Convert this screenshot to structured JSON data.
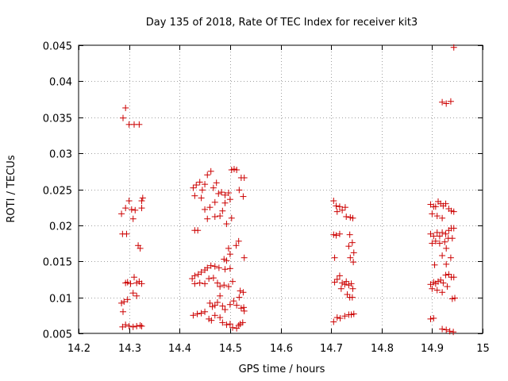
{
  "chart_data": {
    "type": "scatter",
    "title": "Day 135 of 2018, Rate Of TEC Index for receiver kit3",
    "xlabel": "GPS time / hours",
    "ylabel": "ROTI / TECUs",
    "xlim": [
      14.2,
      15.0
    ],
    "ylim": [
      0.005,
      0.045
    ],
    "xticks": [
      14.2,
      14.3,
      14.4,
      14.5,
      14.6,
      14.7,
      14.8,
      14.9,
      15.0
    ],
    "xtick_labels": [
      "14.2",
      "14.3",
      "14.4",
      "14.5",
      "14.6",
      "14.7",
      "14.8",
      "14.9",
      "15"
    ],
    "yticks": [
      0.005,
      0.01,
      0.015,
      0.02,
      0.025,
      0.03,
      0.035,
      0.04,
      0.045
    ],
    "ytick_labels": [
      "0.005",
      "0.01",
      "0.015",
      "0.02",
      "0.025",
      "0.03",
      "0.035",
      "0.04",
      "0.045"
    ],
    "grid": true,
    "marker": "+",
    "marker_color": "#cc0000",
    "series": [
      {
        "name": "ROTI",
        "points": [
          [
            14.288,
            0.0349
          ],
          [
            14.293,
            0.0363
          ],
          [
            14.3,
            0.034
          ],
          [
            14.31,
            0.034
          ],
          [
            14.32,
            0.034
          ],
          [
            14.285,
            0.0216
          ],
          [
            14.293,
            0.0224
          ],
          [
            14.3,
            0.0234
          ],
          [
            14.305,
            0.0222
          ],
          [
            14.312,
            0.0221
          ],
          [
            14.308,
            0.0209
          ],
          [
            14.325,
            0.0234
          ],
          [
            14.327,
            0.0238
          ],
          [
            14.325,
            0.0224
          ],
          [
            14.287,
            0.0188
          ],
          [
            14.295,
            0.0188
          ],
          [
            14.318,
            0.0172
          ],
          [
            14.322,
            0.0168
          ],
          [
            14.293,
            0.012
          ],
          [
            14.297,
            0.0121
          ],
          [
            14.303,
            0.0119
          ],
          [
            14.31,
            0.0128
          ],
          [
            14.315,
            0.012
          ],
          [
            14.32,
            0.0122
          ],
          [
            14.325,
            0.0119
          ],
          [
            14.308,
            0.0106
          ],
          [
            14.315,
            0.0102
          ],
          [
            14.285,
            0.0092
          ],
          [
            14.29,
            0.0094
          ],
          [
            14.297,
            0.0097
          ],
          [
            14.288,
            0.008
          ],
          [
            14.287,
            0.0059
          ],
          [
            14.293,
            0.0062
          ],
          [
            14.3,
            0.006
          ],
          [
            14.308,
            0.0059
          ],
          [
            14.315,
            0.006
          ],
          [
            14.322,
            0.0061
          ],
          [
            14.325,
            0.006
          ],
          [
            14.427,
            0.0252
          ],
          [
            14.433,
            0.0256
          ],
          [
            14.44,
            0.026
          ],
          [
            14.445,
            0.0249
          ],
          [
            14.45,
            0.0257
          ],
          [
            14.455,
            0.027
          ],
          [
            14.462,
            0.0275
          ],
          [
            14.467,
            0.0252
          ],
          [
            14.473,
            0.0259
          ],
          [
            14.477,
            0.0244
          ],
          [
            14.483,
            0.0246
          ],
          [
            14.49,
            0.0242
          ],
          [
            14.497,
            0.0245
          ],
          [
            14.503,
            0.0277
          ],
          [
            14.508,
            0.0278
          ],
          [
            14.513,
            0.0277
          ],
          [
            14.518,
            0.0249
          ],
          [
            14.522,
            0.0266
          ],
          [
            14.528,
            0.0266
          ],
          [
            14.526,
            0.024
          ],
          [
            14.43,
            0.0241
          ],
          [
            14.443,
            0.0238
          ],
          [
            14.45,
            0.0222
          ],
          [
            14.46,
            0.0225
          ],
          [
            14.47,
            0.0232
          ],
          [
            14.49,
            0.0231
          ],
          [
            14.5,
            0.0236
          ],
          [
            14.485,
            0.022
          ],
          [
            14.455,
            0.0209
          ],
          [
            14.47,
            0.0212
          ],
          [
            14.48,
            0.0213
          ],
          [
            14.493,
            0.0202
          ],
          [
            14.503,
            0.021
          ],
          [
            14.43,
            0.0193
          ],
          [
            14.436,
            0.0193
          ],
          [
            14.517,
            0.0178
          ],
          [
            14.512,
            0.0172
          ],
          [
            14.497,
            0.0168
          ],
          [
            14.5,
            0.016
          ],
          [
            14.488,
            0.0153
          ],
          [
            14.493,
            0.0151
          ],
          [
            14.528,
            0.0155
          ],
          [
            14.425,
            0.0126
          ],
          [
            14.43,
            0.013
          ],
          [
            14.437,
            0.0132
          ],
          [
            14.443,
            0.0135
          ],
          [
            14.45,
            0.0138
          ],
          [
            14.455,
            0.0141
          ],
          [
            14.462,
            0.0144
          ],
          [
            14.47,
            0.0143
          ],
          [
            14.478,
            0.0141
          ],
          [
            14.49,
            0.0139
          ],
          [
            14.5,
            0.014
          ],
          [
            14.43,
            0.0119
          ],
          [
            14.44,
            0.012
          ],
          [
            14.45,
            0.0119
          ],
          [
            14.458,
            0.0126
          ],
          [
            14.467,
            0.0127
          ],
          [
            14.475,
            0.012
          ],
          [
            14.48,
            0.0115
          ],
          [
            14.488,
            0.0117
          ],
          [
            14.497,
            0.0115
          ],
          [
            14.505,
            0.0122
          ],
          [
            14.52,
            0.0109
          ],
          [
            14.526,
            0.0107
          ],
          [
            14.46,
            0.0092
          ],
          [
            14.465,
            0.0087
          ],
          [
            14.47,
            0.0089
          ],
          [
            14.475,
            0.0093
          ],
          [
            14.48,
            0.0102
          ],
          [
            14.485,
            0.0088
          ],
          [
            14.49,
            0.0083
          ],
          [
            14.5,
            0.009
          ],
          [
            14.507,
            0.0095
          ],
          [
            14.513,
            0.0089
          ],
          [
            14.518,
            0.01
          ],
          [
            14.522,
            0.0085
          ],
          [
            14.527,
            0.0086
          ],
          [
            14.528,
            0.0081
          ],
          [
            14.427,
            0.0075
          ],
          [
            14.435,
            0.0077
          ],
          [
            14.443,
            0.0078
          ],
          [
            14.45,
            0.008
          ],
          [
            14.458,
            0.007
          ],
          [
            14.463,
            0.0068
          ],
          [
            14.47,
            0.0075
          ],
          [
            14.48,
            0.0072
          ],
          [
            14.485,
            0.0065
          ],
          [
            14.493,
            0.0062
          ],
          [
            14.5,
            0.0063
          ],
          [
            14.505,
            0.0058
          ],
          [
            14.513,
            0.0057
          ],
          [
            14.52,
            0.0063
          ],
          [
            14.525,
            0.0065
          ],
          [
            14.517,
            0.0061
          ],
          [
            14.705,
            0.0234
          ],
          [
            14.71,
            0.0227
          ],
          [
            14.717,
            0.0226
          ],
          [
            14.722,
            0.0221
          ],
          [
            14.728,
            0.0225
          ],
          [
            14.73,
            0.0212
          ],
          [
            14.738,
            0.0211
          ],
          [
            14.743,
            0.021
          ],
          [
            14.712,
            0.0219
          ],
          [
            14.705,
            0.0187
          ],
          [
            14.71,
            0.0186
          ],
          [
            14.717,
            0.0188
          ],
          [
            14.737,
            0.0187
          ],
          [
            14.742,
            0.0176
          ],
          [
            14.735,
            0.0171
          ],
          [
            14.745,
            0.0162
          ],
          [
            14.738,
            0.0155
          ],
          [
            14.744,
            0.0149
          ],
          [
            14.707,
            0.0155
          ],
          [
            14.707,
            0.0121
          ],
          [
            14.712,
            0.0125
          ],
          [
            14.717,
            0.013
          ],
          [
            14.722,
            0.012
          ],
          [
            14.727,
            0.0118
          ],
          [
            14.73,
            0.0122
          ],
          [
            14.735,
            0.0117
          ],
          [
            14.74,
            0.0119
          ],
          [
            14.743,
            0.0112
          ],
          [
            14.72,
            0.0112
          ],
          [
            14.737,
            0.01
          ],
          [
            14.742,
            0.01
          ],
          [
            14.732,
            0.0104
          ],
          [
            14.705,
            0.0066
          ],
          [
            14.712,
            0.0072
          ],
          [
            14.718,
            0.0071
          ],
          [
            14.727,
            0.0074
          ],
          [
            14.735,
            0.0076
          ],
          [
            14.74,
            0.0076
          ],
          [
            14.745,
            0.0077
          ],
          [
            14.897,
            0.0229
          ],
          [
            14.903,
            0.0226
          ],
          [
            14.907,
            0.0226
          ],
          [
            14.912,
            0.0233
          ],
          [
            14.917,
            0.023
          ],
          [
            14.922,
            0.0227
          ],
          [
            14.927,
            0.023
          ],
          [
            14.933,
            0.0223
          ],
          [
            14.938,
            0.022
          ],
          [
            14.943,
            0.0219
          ],
          [
            14.9,
            0.0216
          ],
          [
            14.91,
            0.0213
          ],
          [
            14.92,
            0.021
          ],
          [
            14.897,
            0.0188
          ],
          [
            14.903,
            0.0185
          ],
          [
            14.91,
            0.019
          ],
          [
            14.915,
            0.0185
          ],
          [
            14.92,
            0.019
          ],
          [
            14.927,
            0.0188
          ],
          [
            14.933,
            0.0193
          ],
          [
            14.938,
            0.0196
          ],
          [
            14.943,
            0.0196
          ],
          [
            14.9,
            0.0175
          ],
          [
            14.907,
            0.0178
          ],
          [
            14.915,
            0.0175
          ],
          [
            14.925,
            0.0177
          ],
          [
            14.932,
            0.0182
          ],
          [
            14.94,
            0.0182
          ],
          [
            14.928,
            0.0168
          ],
          [
            14.92,
            0.0158
          ],
          [
            14.937,
            0.0155
          ],
          [
            14.905,
            0.0145
          ],
          [
            14.928,
            0.0146
          ],
          [
            14.897,
            0.0118
          ],
          [
            14.903,
            0.0121
          ],
          [
            14.907,
            0.0119
          ],
          [
            14.912,
            0.0122
          ],
          [
            14.917,
            0.0124
          ],
          [
            14.922,
            0.012
          ],
          [
            14.927,
            0.0131
          ],
          [
            14.933,
            0.0132
          ],
          [
            14.938,
            0.0128
          ],
          [
            14.943,
            0.0128
          ],
          [
            14.9,
            0.0112
          ],
          [
            14.91,
            0.011
          ],
          [
            14.92,
            0.0107
          ],
          [
            14.93,
            0.0115
          ],
          [
            14.94,
            0.0098
          ],
          [
            14.945,
            0.0099
          ],
          [
            14.897,
            0.007
          ],
          [
            14.903,
            0.0071
          ],
          [
            14.92,
            0.0056
          ],
          [
            14.928,
            0.0055
          ],
          [
            14.935,
            0.0053
          ],
          [
            14.942,
            0.0052
          ],
          [
            14.92,
            0.0371
          ],
          [
            14.928,
            0.0369
          ],
          [
            14.937,
            0.0372
          ],
          [
            14.943,
            0.0447
          ]
        ]
      }
    ]
  }
}
